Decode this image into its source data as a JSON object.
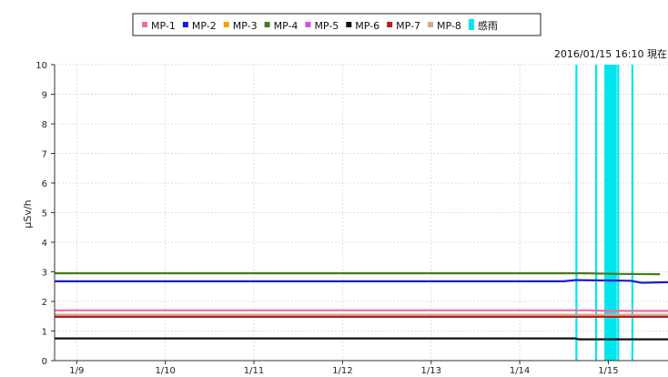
{
  "chart_data": {
    "type": "line",
    "timestamp": "2016/01/15 16:10 現在",
    "ylabel": "μSv/h",
    "ylim": [
      0,
      10
    ],
    "yticks": [
      "0",
      "1",
      "2",
      "3",
      "4",
      "5",
      "6",
      "7",
      "8",
      "9",
      "10"
    ],
    "xlim": [
      "2016-01-08T18:00",
      "2016-01-15T16:10"
    ],
    "xticks": [
      {
        "label": "1/9",
        "t": "2016-01-09T00:00"
      },
      {
        "label": "1/10",
        "t": "2016-01-10T00:00"
      },
      {
        "label": "1/11",
        "t": "2016-01-11T00:00"
      },
      {
        "label": "1/12",
        "t": "2016-01-12T00:00"
      },
      {
        "label": "1/13",
        "t": "2016-01-13T00:00"
      },
      {
        "label": "1/14",
        "t": "2016-01-14T00:00"
      },
      {
        "label": "1/15",
        "t": "2016-01-15T00:00"
      }
    ],
    "grid": true,
    "legend_position": "top-center",
    "series": [
      {
        "name": "MP-1",
        "color": "#f06aa8",
        "points": [
          [
            "2016-01-08T18:00",
            1.7
          ],
          [
            "2016-01-14T18:00",
            1.7
          ],
          [
            "2016-01-15T00:00",
            1.68
          ],
          [
            "2016-01-15T16:10",
            1.68
          ]
        ]
      },
      {
        "name": "MP-2",
        "color": "#1a1adc",
        "points": [
          [
            "2016-01-08T18:00",
            2.68
          ],
          [
            "2016-01-14T12:00",
            2.68
          ],
          [
            "2016-01-14T15:00",
            2.72
          ],
          [
            "2016-01-15T06:00",
            2.7
          ],
          [
            "2016-01-15T09:00",
            2.63
          ],
          [
            "2016-01-15T16:10",
            2.65
          ]
        ]
      },
      {
        "name": "MP-3",
        "color": "#f0a000",
        "points": [
          [
            "2016-01-08T18:00",
            1.52
          ],
          [
            "2016-01-15T16:10",
            1.52
          ]
        ]
      },
      {
        "name": "MP-4",
        "color": "#4a7a1e",
        "points": [
          [
            "2016-01-08T18:00",
            2.95
          ],
          [
            "2016-01-14T18:00",
            2.95
          ],
          [
            "2016-01-15T03:00",
            2.93
          ],
          [
            "2016-01-15T14:00",
            2.92
          ]
        ]
      },
      {
        "name": "MP-5",
        "color": "#d050e0",
        "points": [
          [
            "2016-01-08T18:00",
            1.5
          ],
          [
            "2016-01-15T16:10",
            1.5
          ]
        ]
      },
      {
        "name": "MP-6",
        "color": "#111111",
        "points": [
          [
            "2016-01-08T18:00",
            0.75
          ],
          [
            "2016-01-14T15:00",
            0.75
          ],
          [
            "2016-01-14T16:00",
            0.72
          ],
          [
            "2016-01-15T16:10",
            0.72
          ]
        ]
      },
      {
        "name": "MP-7",
        "color": "#b02020",
        "points": [
          [
            "2016-01-08T18:00",
            1.48
          ],
          [
            "2016-01-15T16:10",
            1.48
          ]
        ]
      },
      {
        "name": "MP-8",
        "color": "#d8aa80",
        "points": [
          [
            "2016-01-08T18:00",
            1.55
          ],
          [
            "2016-01-15T16:10",
            1.55
          ]
        ]
      }
    ],
    "rain": {
      "name": "感雨",
      "color": "#00e5ee",
      "events": [
        "2016-01-14T15:20",
        "2016-01-14T20:40",
        "2016-01-14T23:10",
        "2016-01-14T23:40",
        "2016-01-15T00:00",
        "2016-01-15T00:30",
        "2016-01-15T01:00",
        "2016-01-15T01:30",
        "2016-01-15T02:00",
        "2016-01-15T02:40",
        "2016-01-15T06:30"
      ]
    }
  }
}
